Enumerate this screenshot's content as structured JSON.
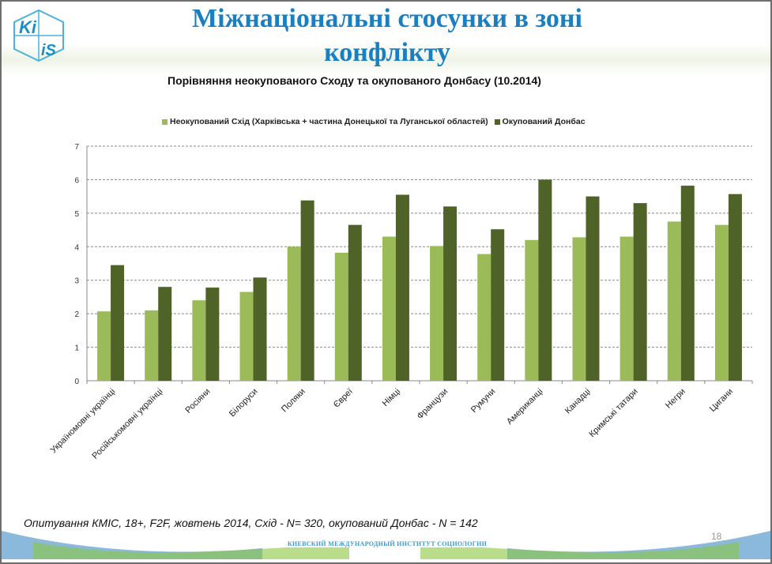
{
  "header": {
    "title_line1": "Міжнаціональні стосунки в зоні",
    "title_line2": "конфлікту",
    "logo_text_top": "Ki",
    "logo_text_bottom": "iS"
  },
  "chart_data": {
    "type": "bar",
    "title": "Порівняння неокупованого Сходу та окупованого Донбасу (10.2014)",
    "xlabel": "",
    "ylabel": "",
    "ylim": [
      0,
      7
    ],
    "yticks": [
      "0",
      "1",
      "2",
      "3",
      "4",
      "5",
      "6",
      "7"
    ],
    "grid": true,
    "legend_position": "top",
    "categories": [
      "Україномовні українці",
      "Російськомовні українці",
      "Росіяни",
      "Білоруси",
      "Поляки",
      "Євреї",
      "Німці",
      "Французи",
      "Румуни",
      "Американці",
      "Канадці",
      "Кримські татари",
      "Негри",
      "Цигани"
    ],
    "series": [
      {
        "name": "Неокупований Схід (Харківська + частина Донецької та Луганської областей)",
        "color": "#9bbb59",
        "values": [
          2.07,
          2.1,
          2.4,
          2.65,
          4.0,
          3.82,
          4.3,
          4.02,
          3.78,
          4.2,
          4.28,
          4.3,
          4.75,
          4.65
        ]
      },
      {
        "name": "Окупований Донбас",
        "color": "#4f6228",
        "values": [
          3.45,
          2.8,
          2.78,
          3.08,
          5.38,
          4.65,
          5.55,
          5.2,
          4.52,
          6.0,
          5.5,
          5.3,
          5.82,
          5.57
        ]
      }
    ]
  },
  "footer": {
    "source": "Опитування КМІС, 18+, F2F, жовтень 2014, Схід - N= 320,  окупований Донбас - N = 142",
    "page_number": "18",
    "institute": "КИЕВСКИЙ МЕЖДУНАРОДНЫЙ ИНСТИТУТ СОЦИОЛОГИИ"
  }
}
